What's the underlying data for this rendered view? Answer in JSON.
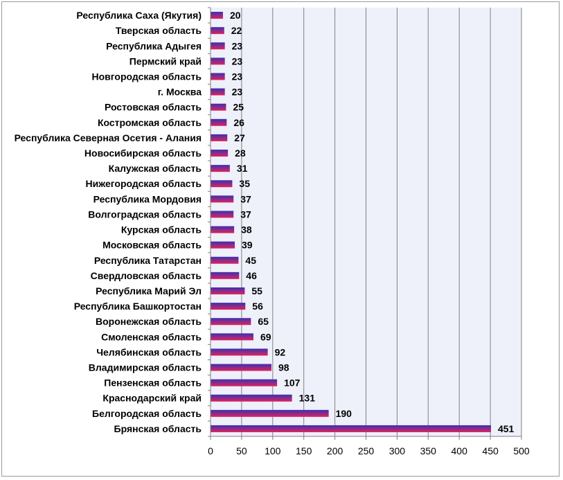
{
  "chart_data": {
    "type": "bar",
    "orientation": "horizontal",
    "title": "",
    "xlabel": "",
    "ylabel": "",
    "xlim": [
      0,
      500
    ],
    "xticks": [
      0,
      50,
      100,
      150,
      200,
      250,
      300,
      350,
      400,
      450,
      500
    ],
    "grid": true,
    "legend": "none",
    "categories": [
      "Республика Саха (Якутия)",
      "Тверская область",
      "Республика Адыгея",
      "Пермский край",
      "Новгородская область",
      "г. Москва",
      "Ростовская область",
      "Костромская область",
      "Республика Северная Осетия - Алания",
      "Новосибирская область",
      "Калужская область",
      "Нижегородская область",
      "Республика Мордовия",
      "Волгоградская область",
      "Курская область",
      "Московская область",
      "Республика Татарстан",
      "Свердловская область",
      "Республика Марий Эл",
      "Республика Башкортостан",
      "Воронежская область",
      "Смоленская область",
      "Челябинская область",
      "Владимирская область",
      "Пензенская область",
      "Краснодарский край",
      "Белгородская область",
      "Брянская область"
    ],
    "values": [
      20,
      22,
      23,
      23,
      23,
      23,
      25,
      26,
      27,
      28,
      31,
      35,
      37,
      37,
      38,
      39,
      45,
      46,
      55,
      56,
      65,
      69,
      92,
      98,
      107,
      131,
      190,
      451
    ],
    "colors": {
      "bar_top": "#3a2fb0",
      "bar_bottom": "#e0205a",
      "plot_bg": "#eef0fa",
      "grid": "#808080"
    }
  }
}
